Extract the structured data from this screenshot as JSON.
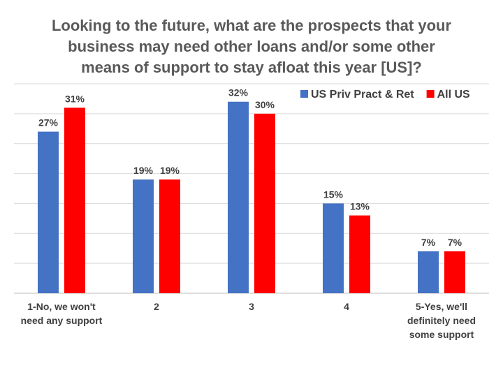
{
  "chart_data": {
    "type": "bar",
    "title_lines": [
      "Looking to the future, what are the prospects that your",
      "business may need other loans and/or some other",
      "means of support to stay afloat this year [US]?"
    ],
    "categories": [
      [
        "1-No, we won't",
        "need any support"
      ],
      [
        "2"
      ],
      [
        "3"
      ],
      [
        "4"
      ],
      [
        "5-Yes, we'll",
        "definitely need",
        "some support"
      ]
    ],
    "series": [
      {
        "name": "US Priv Pract & Ret",
        "color": "#4472C4",
        "values": [
          27,
          19,
          32,
          15,
          7
        ],
        "labels": [
          "27%",
          "19%",
          "32%",
          "15%",
          "7%"
        ]
      },
      {
        "name": "All US",
        "color": "#FF0000",
        "values": [
          31,
          19,
          30,
          13,
          7
        ],
        "labels": [
          "31%",
          "19%",
          "30%",
          "13%",
          "7%"
        ]
      }
    ],
    "ylim": [
      0,
      35
    ],
    "gridlines": true,
    "y_tick_labels_shown": false,
    "legend_position": "top-right"
  }
}
